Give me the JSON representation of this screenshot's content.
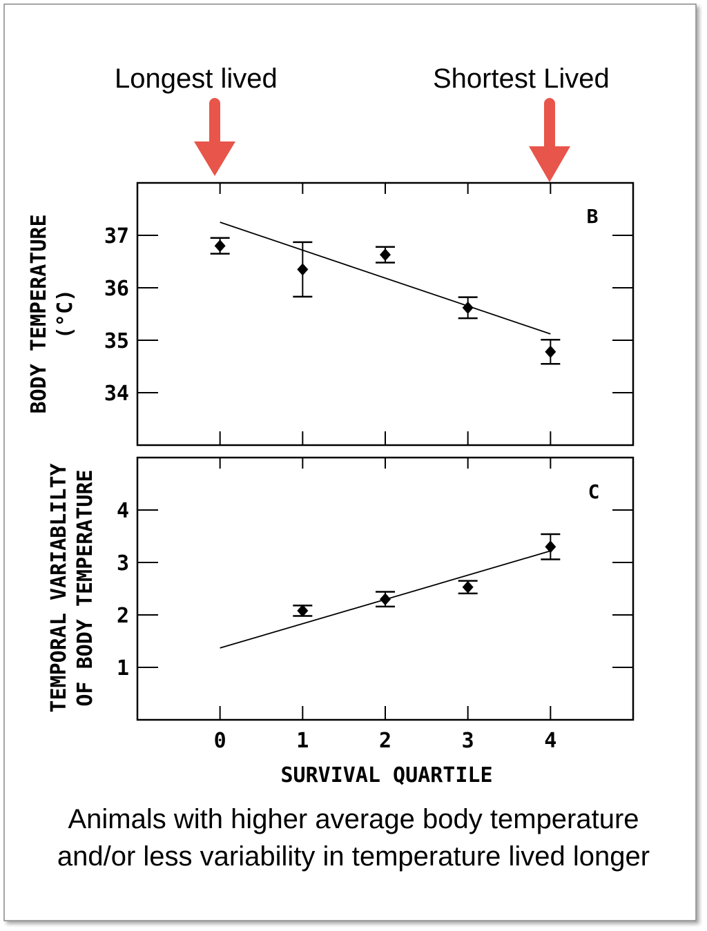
{
  "annotations": {
    "longest": "Longest lived",
    "shortest": "Shortest Lived",
    "arrow_color": "#e8554a"
  },
  "caption": {
    "line1": "Animals with higher average body temperature",
    "line2": "and/or less variability in temperature lived longer"
  },
  "chart_data": [
    {
      "type": "scatter",
      "panel_label": "B",
      "ylabel": "BODY TEMPERATURE",
      "ylabel_unit": "(°C)",
      "xlabel": "",
      "xlim": [
        -1,
        5
      ],
      "ylim": [
        33.0,
        38.0
      ],
      "x_ticks": [
        0,
        1,
        2,
        3,
        4
      ],
      "y_ticks": [
        34,
        35,
        36,
        37
      ],
      "y_tick_labels": [
        "34",
        "35",
        "36",
        "37"
      ],
      "x": [
        0,
        1,
        2,
        3,
        4
      ],
      "y": [
        36.8,
        36.35,
        36.63,
        35.62,
        34.78
      ],
      "error": [
        0.15,
        0.52,
        0.15,
        0.2,
        0.23
      ],
      "fit_line": {
        "x": [
          0,
          4
        ],
        "y": [
          37.25,
          35.12
        ]
      },
      "grid": false
    },
    {
      "type": "scatter",
      "panel_label": "C",
      "ylabel": "TEMPORAL VARIABLILTY",
      "ylabel2": "OF BODY TEMPERATURE",
      "xlabel": "SURVIVAL QUARTILE",
      "xlim": [
        -1,
        5
      ],
      "ylim": [
        0.0,
        5.0
      ],
      "x_ticks": [
        0,
        1,
        2,
        3,
        4
      ],
      "x_tick_labels": [
        "0",
        "1",
        "2",
        "3",
        "4"
      ],
      "y_ticks": [
        1,
        2,
        3,
        4
      ],
      "y_tick_labels": [
        "1",
        "2",
        "3",
        "4"
      ],
      "x": [
        1,
        2,
        3,
        4
      ],
      "y": [
        2.08,
        2.3,
        2.53,
        3.3
      ],
      "error": [
        0.1,
        0.14,
        0.12,
        0.24
      ],
      "fit_line": {
        "x": [
          0,
          4
        ],
        "y": [
          1.37,
          3.22
        ]
      },
      "grid": false
    }
  ]
}
